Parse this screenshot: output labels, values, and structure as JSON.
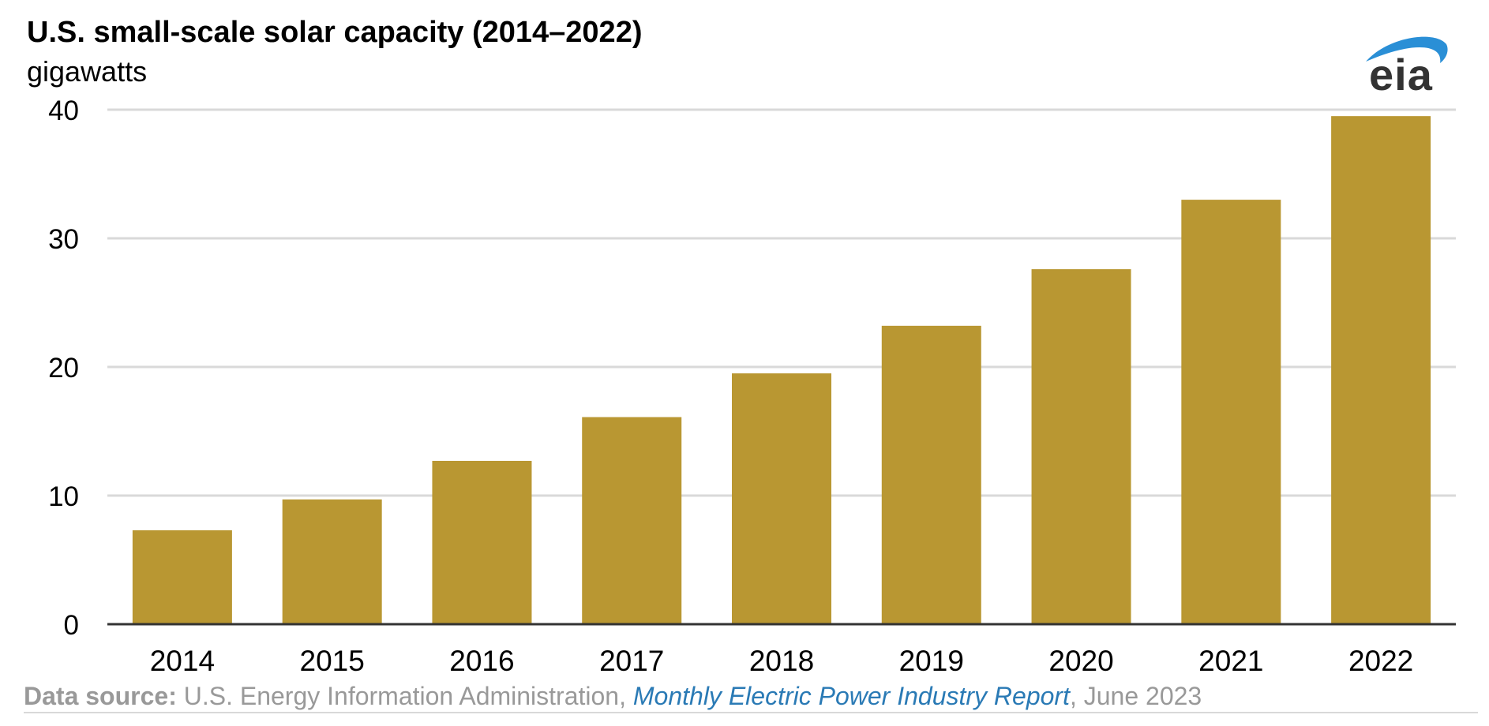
{
  "title": "U.S. small-scale solar capacity (2014–2022)",
  "subtitle": "gigawatts",
  "logo": "eia",
  "source": {
    "label": "Data source:",
    "org": " U.S. Energy Information Administration, ",
    "publication": "Monthly Electric Power Industry Report",
    "date": ", June 2023"
  },
  "colors": {
    "bar": "#b99732",
    "grid": "#d9d9d9",
    "axis": "#333333",
    "link": "#2a7ab5"
  },
  "chart_data": {
    "type": "bar",
    "categories": [
      "2014",
      "2015",
      "2016",
      "2017",
      "2018",
      "2019",
      "2020",
      "2021",
      "2022"
    ],
    "values": [
      7.3,
      9.7,
      12.7,
      16.1,
      19.5,
      23.2,
      27.6,
      33.0,
      39.5
    ],
    "ylim": [
      0,
      40
    ],
    "yticks": [
      0,
      10,
      20,
      30,
      40
    ],
    "xlabel": "",
    "ylabel": "",
    "grid": true
  }
}
